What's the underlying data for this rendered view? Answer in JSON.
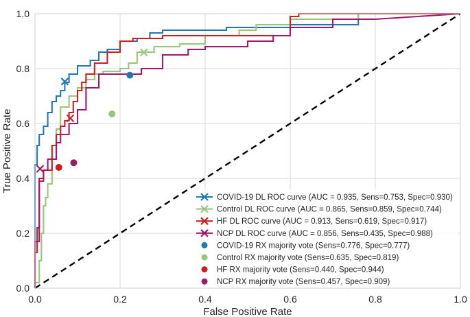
{
  "chart_data": {
    "type": "line",
    "xlabel": "False Positive Rate",
    "ylabel": "True Positive Rate",
    "xlim": [
      0,
      1
    ],
    "ylim": [
      0,
      1
    ],
    "xticks": [
      "0.0",
      "0.2",
      "0.4",
      "0.6",
      "0.8",
      "1.0"
    ],
    "yticks": [
      "0.0",
      "0.2",
      "0.4",
      "0.6",
      "0.8",
      "1.0"
    ],
    "grid": true,
    "legend_position": "lower-right",
    "diagonal": {
      "x": [
        0,
        1
      ],
      "y": [
        0,
        1
      ],
      "style": "dashed",
      "color": "#000000"
    },
    "series": [
      {
        "name": "COVID-19 DL ROC curve (AUC = 0.935, Sens=0.753, Spec=0.930)",
        "color": "#1f77b4",
        "operating_point": {
          "x": 0.07,
          "y": 0.753
        },
        "x": [
          0,
          0,
          0.005,
          0.005,
          0.01,
          0.01,
          0.02,
          0.02,
          0.03,
          0.03,
          0.04,
          0.04,
          0.05,
          0.05,
          0.06,
          0.06,
          0.07,
          0.07,
          0.08,
          0.08,
          0.1,
          0.1,
          0.13,
          0.13,
          0.15,
          0.15,
          0.17,
          0.17,
          0.2,
          0.2,
          0.24,
          0.24,
          0.27,
          0.27,
          0.3,
          0.3,
          0.45,
          0.45,
          0.6,
          0.6,
          0.76,
          0.76,
          1.0
        ],
        "y": [
          0,
          0.45,
          0.45,
          0.52,
          0.52,
          0.56,
          0.56,
          0.59,
          0.59,
          0.64,
          0.64,
          0.68,
          0.68,
          0.7,
          0.7,
          0.72,
          0.72,
          0.75,
          0.75,
          0.78,
          0.78,
          0.81,
          0.81,
          0.83,
          0.83,
          0.86,
          0.86,
          0.87,
          0.87,
          0.9,
          0.9,
          0.91,
          0.91,
          0.93,
          0.93,
          0.94,
          0.94,
          0.95,
          0.95,
          0.96,
          0.96,
          1.0,
          1.0
        ]
      },
      {
        "name": "Control DL ROC curve (AUC = 0.865, Sens=0.859, Spec=0.744)",
        "color": "#98c67a",
        "operating_point": {
          "x": 0.256,
          "y": 0.859
        },
        "x": [
          0,
          0,
          0.01,
          0.01,
          0.015,
          0.015,
          0.02,
          0.02,
          0.025,
          0.025,
          0.03,
          0.03,
          0.04,
          0.04,
          0.05,
          0.05,
          0.06,
          0.06,
          0.08,
          0.08,
          0.1,
          0.1,
          0.12,
          0.12,
          0.14,
          0.14,
          0.16,
          0.16,
          0.2,
          0.2,
          0.22,
          0.22,
          0.24,
          0.24,
          0.28,
          0.28,
          0.34,
          0.34,
          0.4,
          0.4,
          0.48,
          0.48,
          0.52,
          0.52,
          0.6,
          0.6,
          0.76,
          0.76,
          1.0
        ],
        "y": [
          0,
          0.02,
          0.02,
          0.1,
          0.1,
          0.2,
          0.2,
          0.3,
          0.3,
          0.33,
          0.33,
          0.38,
          0.38,
          0.47,
          0.47,
          0.58,
          0.58,
          0.66,
          0.66,
          0.7,
          0.7,
          0.73,
          0.73,
          0.76,
          0.76,
          0.78,
          0.78,
          0.79,
          0.79,
          0.8,
          0.8,
          0.82,
          0.82,
          0.86,
          0.86,
          0.88,
          0.88,
          0.89,
          0.89,
          0.92,
          0.92,
          0.94,
          0.94,
          0.96,
          0.96,
          0.98,
          0.98,
          1.0,
          1.0
        ]
      },
      {
        "name": "HF DL ROC curve (AUC = 0.913, Sens=0.619, Spec=0.917)",
        "color": "#cc1f1f",
        "operating_point": {
          "x": 0.083,
          "y": 0.619
        },
        "x": [
          0,
          0,
          0.005,
          0.005,
          0.01,
          0.01,
          0.02,
          0.02,
          0.04,
          0.04,
          0.05,
          0.05,
          0.06,
          0.06,
          0.07,
          0.07,
          0.08,
          0.08,
          0.09,
          0.09,
          0.1,
          0.1,
          0.11,
          0.11,
          0.12,
          0.12,
          0.14,
          0.14,
          0.17,
          0.17,
          0.2,
          0.2,
          0.23,
          0.23,
          0.3,
          0.3,
          0.6,
          0.6,
          0.62,
          0.62,
          1.0
        ],
        "y": [
          0,
          0.13,
          0.13,
          0.22,
          0.22,
          0.39,
          0.39,
          0.43,
          0.43,
          0.52,
          0.52,
          0.56,
          0.56,
          0.59,
          0.59,
          0.61,
          0.61,
          0.64,
          0.64,
          0.68,
          0.68,
          0.72,
          0.72,
          0.75,
          0.75,
          0.78,
          0.78,
          0.82,
          0.82,
          0.86,
          0.86,
          0.9,
          0.9,
          0.91,
          0.91,
          0.92,
          0.92,
          0.99,
          0.99,
          1.0,
          1.0
        ]
      },
      {
        "name": "NCP DL ROC curve (AUC = 0.856, Sens=0.435, Spec=0.988)",
        "color": "#a0176b",
        "operating_point": {
          "x": 0.012,
          "y": 0.435
        },
        "x": [
          0,
          0,
          0.01,
          0.01,
          0.02,
          0.02,
          0.03,
          0.03,
          0.05,
          0.05,
          0.06,
          0.06,
          0.08,
          0.08,
          0.1,
          0.1,
          0.12,
          0.12,
          0.15,
          0.15,
          0.25,
          0.25,
          0.3,
          0.3,
          0.36,
          0.36,
          0.4,
          0.4,
          0.5,
          0.5,
          0.56,
          0.56,
          0.6,
          0.6,
          0.7,
          0.7,
          0.8,
          0.8,
          1.0
        ],
        "y": [
          0,
          0.17,
          0.17,
          0.4,
          0.4,
          0.43,
          0.43,
          0.47,
          0.47,
          0.53,
          0.53,
          0.56,
          0.56,
          0.6,
          0.6,
          0.65,
          0.65,
          0.73,
          0.73,
          0.78,
          0.78,
          0.8,
          0.8,
          0.85,
          0.85,
          0.87,
          0.87,
          0.88,
          0.88,
          0.9,
          0.9,
          0.92,
          0.92,
          0.95,
          0.95,
          0.98,
          0.98,
          0.98,
          1.0
        ]
      }
    ],
    "rx_points": [
      {
        "name": "COVID-19 RX majority vote (Sens=0.776, Spec=0.777)",
        "x": 0.223,
        "y": 0.776,
        "color": "#1f77b4"
      },
      {
        "name": "Control RX majority vote (Sens=0.635, Spec=0.819)",
        "x": 0.181,
        "y": 0.635,
        "color": "#98c67a"
      },
      {
        "name": "HF RX majority vote (Sens=0.440, Spec=0.944)",
        "x": 0.056,
        "y": 0.44,
        "color": "#cc1f1f"
      },
      {
        "name": "NCP RX majority vote (Sens=0.457, Spec=0.909)",
        "x": 0.091,
        "y": 0.457,
        "color": "#a0176b"
      }
    ]
  }
}
